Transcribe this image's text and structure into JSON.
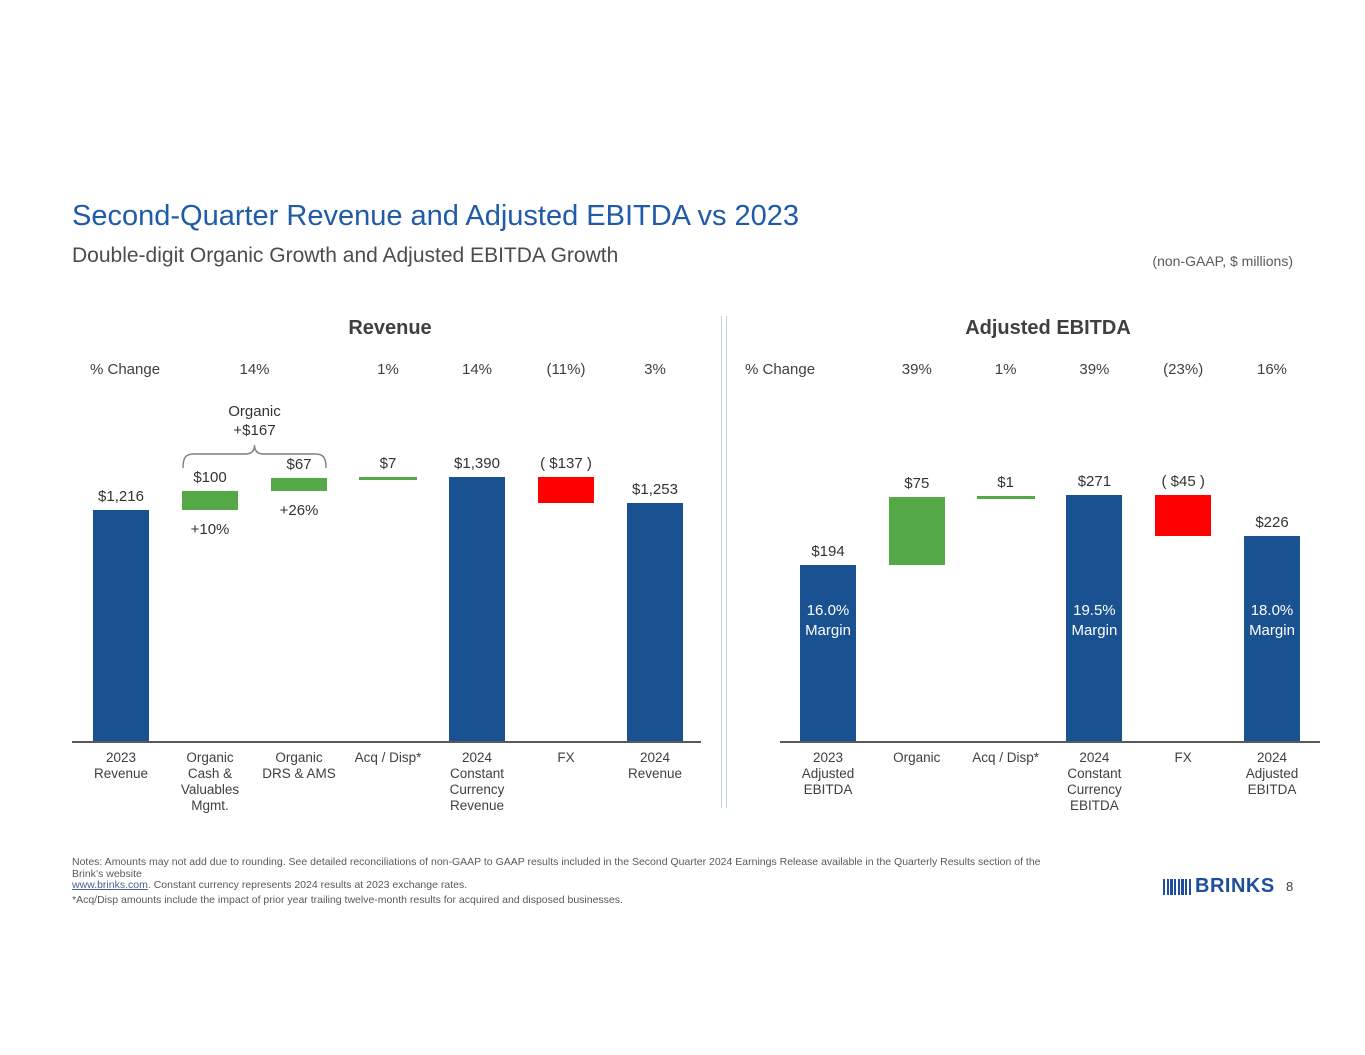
{
  "header": {
    "title": "Second-Quarter Revenue and Adjusted EBITDA vs 2023",
    "subtitle": "Double-digit Organic Growth and Adjusted EBITDA Growth",
    "units_note": "(non-GAAP, $ millions)"
  },
  "colors": {
    "bar_blue": "#1A5191",
    "bar_green": "#54A845",
    "bar_red": "#FF0000",
    "title_blue": "#1F5BA8",
    "divider_blue": "#BCD5EA",
    "axis_gray": "#595959",
    "logo_navy": "#1D4E9E"
  },
  "chart_data": [
    {
      "type": "waterfall",
      "title": "Revenue",
      "pct_change_label": "% Change",
      "pct_changes": [
        {
          "label": "14%",
          "cols": [
            1,
            2
          ]
        },
        {
          "label": "1%",
          "cols": [
            3
          ]
        },
        {
          "label": "14%",
          "cols": [
            4
          ]
        },
        {
          "label": "(11%)",
          "cols": [
            5
          ]
        },
        {
          "label": "3%",
          "cols": [
            6
          ]
        }
      ],
      "bracket": {
        "lines": [
          "Organic",
          "+$167"
        ],
        "cols": [
          1,
          2
        ]
      },
      "bars": [
        {
          "category": [
            "2023",
            "Revenue"
          ],
          "value": 1216,
          "display": "$1,216",
          "kind": "total"
        },
        {
          "category": [
            "Organic",
            "Cash &",
            "Valuables",
            "Mgmt."
          ],
          "value": 100,
          "display": "$100",
          "kind": "increase",
          "sub_label": "+10%"
        },
        {
          "category": [
            "Organic",
            "DRS & AMS"
          ],
          "value": 67,
          "display": "$67",
          "kind": "increase",
          "sub_label": "+26%"
        },
        {
          "category": [
            "Acq / Disp*"
          ],
          "value": 7,
          "display": "$7",
          "kind": "increase-line"
        },
        {
          "category": [
            "2024",
            "Constant",
            "Currency",
            "Revenue"
          ],
          "value": 1390,
          "display": "$1,390",
          "kind": "total"
        },
        {
          "category": [
            "FX"
          ],
          "value": -137,
          "display": "( $137 )",
          "kind": "decrease"
        },
        {
          "category": [
            "2024",
            "Revenue"
          ],
          "value": 1253,
          "display": "$1,253",
          "kind": "total"
        }
      ]
    },
    {
      "type": "waterfall",
      "title": "Adjusted EBITDA",
      "pct_change_label": "% Change",
      "pct_changes": [
        {
          "label": "39%",
          "cols": [
            1
          ]
        },
        {
          "label": "1%",
          "cols": [
            2
          ]
        },
        {
          "label": "39%",
          "cols": [
            3
          ]
        },
        {
          "label": "(23%)",
          "cols": [
            4
          ]
        },
        {
          "label": "16%",
          "cols": [
            5
          ]
        }
      ],
      "bars": [
        {
          "category": [
            "2023",
            "Adjusted",
            "EBITDA"
          ],
          "value": 194,
          "display": "$194",
          "kind": "total",
          "margin": [
            "16.0%",
            "Margin"
          ]
        },
        {
          "category": [
            "Organic"
          ],
          "value": 75,
          "display": "$75",
          "kind": "increase"
        },
        {
          "category": [
            "Acq / Disp*"
          ],
          "value": 1,
          "display": "$1",
          "kind": "increase-line"
        },
        {
          "category": [
            "2024",
            "Constant",
            "Currency",
            "EBITDA"
          ],
          "value": 271,
          "display": "$271",
          "kind": "total",
          "margin": [
            "19.5%",
            "Margin"
          ]
        },
        {
          "category": [
            "FX"
          ],
          "value": -45,
          "display": "( $45 )",
          "kind": "decrease"
        },
        {
          "category": [
            "2024",
            "Adjusted",
            "EBITDA"
          ],
          "value": 226,
          "display": "$226",
          "kind": "total",
          "margin": [
            "18.0%",
            "Margin"
          ]
        }
      ]
    }
  ],
  "footer": {
    "note_line1": "Notes: Amounts may not add due to rounding. See detailed reconciliations of non-GAAP to GAAP results included in the Second Quarter 2024 Earnings Release available in the Quarterly Results section of the Brink’s website",
    "link_text": "www.brinks.com",
    "note_line2_rest": ". Constant currency represents 2024 results at 2023 exchange rates.",
    "footnote": "*Acq/Disp amounts include the impact of prior year trailing twelve-month results for acquired and disposed businesses.",
    "logo_text": "BRINKS",
    "page_number": "8"
  }
}
